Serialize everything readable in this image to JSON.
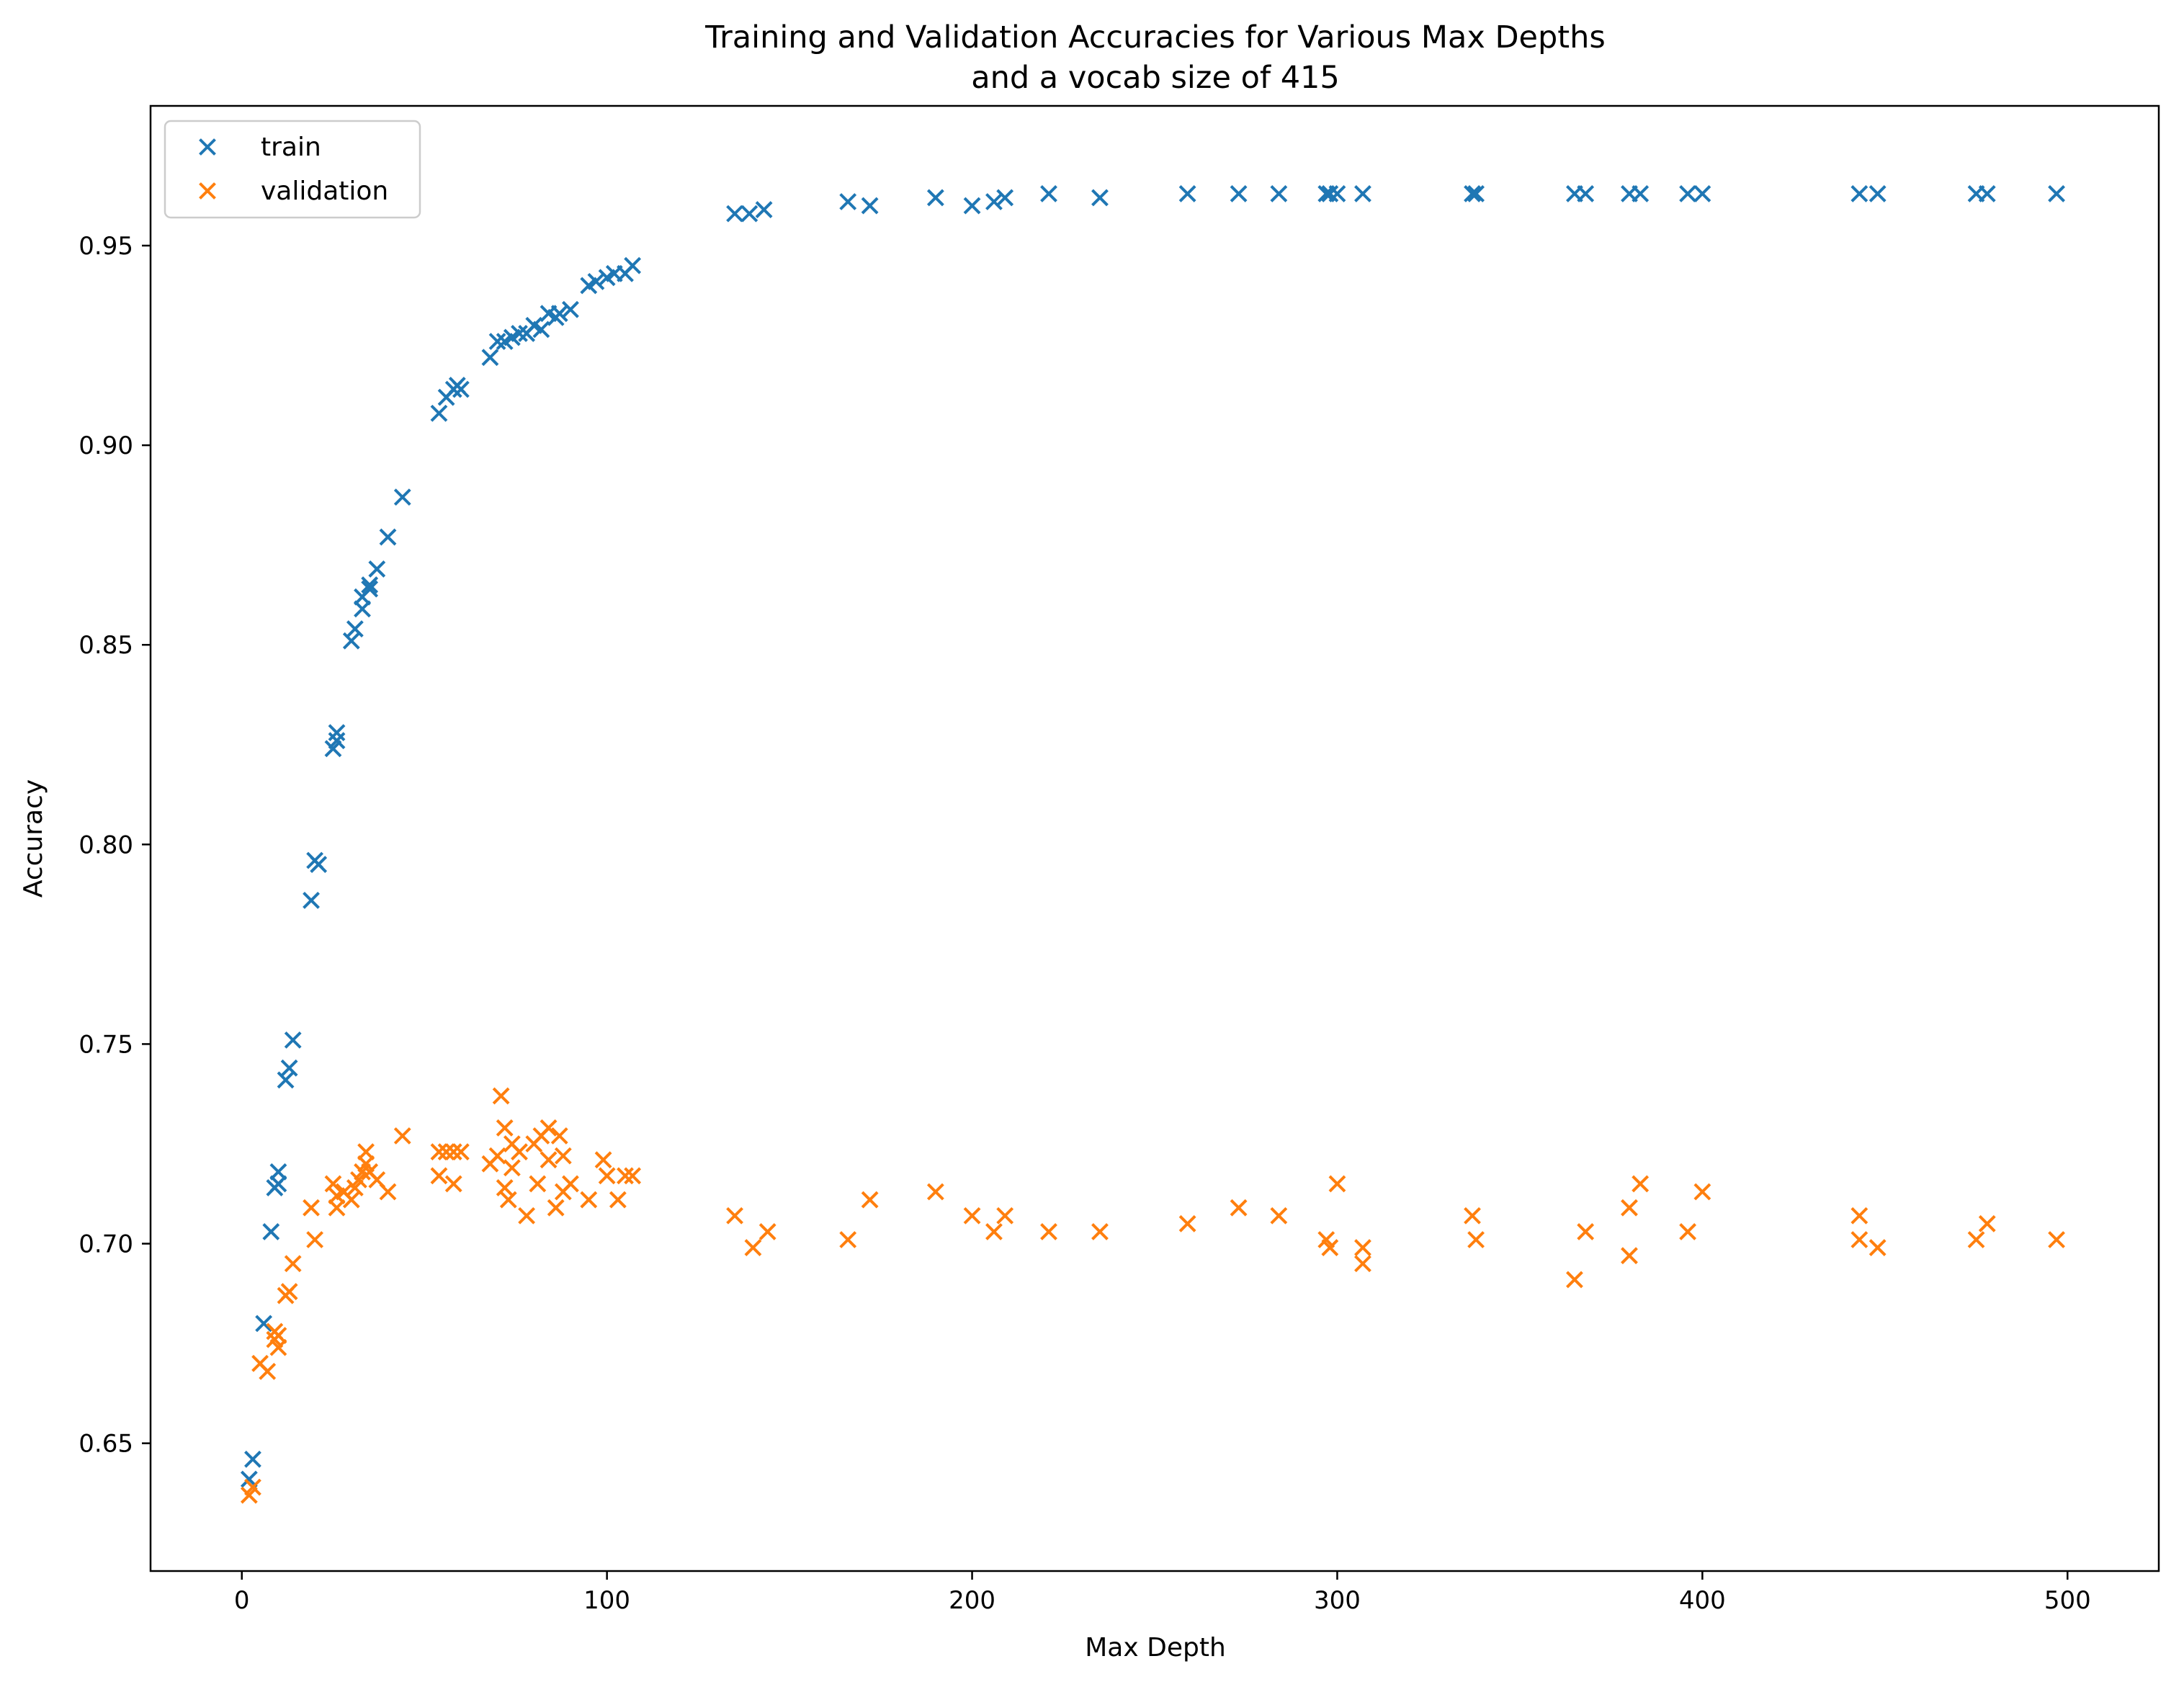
{
  "chart_data": {
    "type": "scatter",
    "title": [
      "Training and Validation Accuracies for Various Max Depths",
      "and a vocab size of 415"
    ],
    "xlabel": "Max Depth",
    "ylabel": "Accuracy",
    "xlim": [
      -25,
      525
    ],
    "ylim": [
      0.618,
      0.985
    ],
    "xticks": [
      0,
      100,
      200,
      300,
      400,
      500
    ],
    "xtick_labels": [
      "0",
      "100",
      "200",
      "300",
      "400",
      "500"
    ],
    "yticks": [
      0.65,
      0.7,
      0.75,
      0.8,
      0.85,
      0.9,
      0.95
    ],
    "ytick_labels": [
      "0.65",
      "0.70",
      "0.75",
      "0.80",
      "0.85",
      "0.90",
      "0.95"
    ],
    "grid": false,
    "legend_position": "top-left",
    "marker": "x",
    "series": [
      {
        "name": "train",
        "color": "#1f77b4",
        "points": [
          [
            2,
            0.641
          ],
          [
            3,
            0.646
          ],
          [
            6,
            0.68
          ],
          [
            8,
            0.703
          ],
          [
            9,
            0.714
          ],
          [
            10,
            0.718
          ],
          [
            10,
            0.715
          ],
          [
            12,
            0.741
          ],
          [
            13,
            0.744
          ],
          [
            14,
            0.751
          ],
          [
            19,
            0.786
          ],
          [
            20,
            0.796
          ],
          [
            21,
            0.795
          ],
          [
            25,
            0.824
          ],
          [
            26,
            0.828
          ],
          [
            26,
            0.826
          ],
          [
            30,
            0.851
          ],
          [
            31,
            0.854
          ],
          [
            33,
            0.859
          ],
          [
            33,
            0.862
          ],
          [
            35,
            0.865
          ],
          [
            35,
            0.864
          ],
          [
            37,
            0.869
          ],
          [
            40,
            0.877
          ],
          [
            44,
            0.887
          ],
          [
            54,
            0.908
          ],
          [
            56,
            0.912
          ],
          [
            58,
            0.914
          ],
          [
            59,
            0.915
          ],
          [
            60,
            0.914
          ],
          [
            68,
            0.922
          ],
          [
            70,
            0.926
          ],
          [
            72,
            0.926
          ],
          [
            74,
            0.927
          ],
          [
            76,
            0.928
          ],
          [
            78,
            0.928
          ],
          [
            80,
            0.93
          ],
          [
            82,
            0.929
          ],
          [
            84,
            0.933
          ],
          [
            86,
            0.932
          ],
          [
            87,
            0.933
          ],
          [
            90,
            0.934
          ],
          [
            95,
            0.94
          ],
          [
            97,
            0.941
          ],
          [
            100,
            0.942
          ],
          [
            102,
            0.943
          ],
          [
            105,
            0.943
          ],
          [
            107,
            0.945
          ],
          [
            135,
            0.958
          ],
          [
            139,
            0.958
          ],
          [
            143,
            0.959
          ],
          [
            166,
            0.961
          ],
          [
            172,
            0.96
          ],
          [
            190,
            0.962
          ],
          [
            200,
            0.96
          ],
          [
            206,
            0.961
          ],
          [
            209,
            0.962
          ],
          [
            221,
            0.963
          ],
          [
            235,
            0.962
          ],
          [
            259,
            0.963
          ],
          [
            273,
            0.963
          ],
          [
            284,
            0.963
          ],
          [
            297,
            0.963
          ],
          [
            298,
            0.963
          ],
          [
            300,
            0.963
          ],
          [
            307,
            0.963
          ],
          [
            337,
            0.963
          ],
          [
            338,
            0.963
          ],
          [
            365,
            0.963
          ],
          [
            368,
            0.963
          ],
          [
            380,
            0.963
          ],
          [
            383,
            0.963
          ],
          [
            396,
            0.963
          ],
          [
            400,
            0.963
          ],
          [
            443,
            0.963
          ],
          [
            448,
            0.963
          ],
          [
            475,
            0.963
          ],
          [
            478,
            0.963
          ],
          [
            497,
            0.963
          ]
        ]
      },
      {
        "name": "validation",
        "color": "#ff7f0e",
        "points": [
          [
            2,
            0.637
          ],
          [
            3,
            0.639
          ],
          [
            5,
            0.67
          ],
          [
            7,
            0.668
          ],
          [
            9,
            0.676
          ],
          [
            9,
            0.678
          ],
          [
            10,
            0.674
          ],
          [
            10,
            0.677
          ],
          [
            12,
            0.687
          ],
          [
            13,
            0.688
          ],
          [
            14,
            0.695
          ],
          [
            19,
            0.709
          ],
          [
            20,
            0.701
          ],
          [
            25,
            0.715
          ],
          [
            26,
            0.712
          ],
          [
            26,
            0.709
          ],
          [
            28,
            0.713
          ],
          [
            30,
            0.711
          ],
          [
            31,
            0.714
          ],
          [
            32,
            0.716
          ],
          [
            33,
            0.718
          ],
          [
            34,
            0.72
          ],
          [
            34,
            0.723
          ],
          [
            35,
            0.718
          ],
          [
            37,
            0.716
          ],
          [
            40,
            0.713
          ],
          [
            44,
            0.727
          ],
          [
            54,
            0.723
          ],
          [
            54,
            0.717
          ],
          [
            56,
            0.723
          ],
          [
            58,
            0.715
          ],
          [
            58,
            0.723
          ],
          [
            60,
            0.723
          ],
          [
            68,
            0.72
          ],
          [
            70,
            0.722
          ],
          [
            71,
            0.737
          ],
          [
            72,
            0.729
          ],
          [
            72,
            0.714
          ],
          [
            73,
            0.711
          ],
          [
            74,
            0.725
          ],
          [
            74,
            0.719
          ],
          [
            76,
            0.723
          ],
          [
            78,
            0.707
          ],
          [
            80,
            0.725
          ],
          [
            81,
            0.715
          ],
          [
            82,
            0.727
          ],
          [
            84,
            0.721
          ],
          [
            84,
            0.729
          ],
          [
            86,
            0.709
          ],
          [
            87,
            0.727
          ],
          [
            88,
            0.722
          ],
          [
            88,
            0.713
          ],
          [
            90,
            0.715
          ],
          [
            95,
            0.711
          ],
          [
            99,
            0.721
          ],
          [
            100,
            0.717
          ],
          [
            103,
            0.711
          ],
          [
            105,
            0.717
          ],
          [
            107,
            0.717
          ],
          [
            135,
            0.707
          ],
          [
            140,
            0.699
          ],
          [
            144,
            0.703
          ],
          [
            166,
            0.701
          ],
          [
            172,
            0.711
          ],
          [
            190,
            0.713
          ],
          [
            200,
            0.707
          ],
          [
            206,
            0.703
          ],
          [
            209,
            0.707
          ],
          [
            221,
            0.703
          ],
          [
            235,
            0.703
          ],
          [
            259,
            0.705
          ],
          [
            273,
            0.709
          ],
          [
            284,
            0.707
          ],
          [
            297,
            0.701
          ],
          [
            298,
            0.699
          ],
          [
            300,
            0.715
          ],
          [
            307,
            0.699
          ],
          [
            307,
            0.695
          ],
          [
            337,
            0.707
          ],
          [
            338,
            0.701
          ],
          [
            365,
            0.691
          ],
          [
            368,
            0.703
          ],
          [
            380,
            0.709
          ],
          [
            380,
            0.697
          ],
          [
            383,
            0.715
          ],
          [
            396,
            0.703
          ],
          [
            400,
            0.713
          ],
          [
            443,
            0.707
          ],
          [
            443,
            0.701
          ],
          [
            448,
            0.699
          ],
          [
            475,
            0.701
          ],
          [
            478,
            0.705
          ],
          [
            497,
            0.701
          ]
        ]
      }
    ]
  }
}
